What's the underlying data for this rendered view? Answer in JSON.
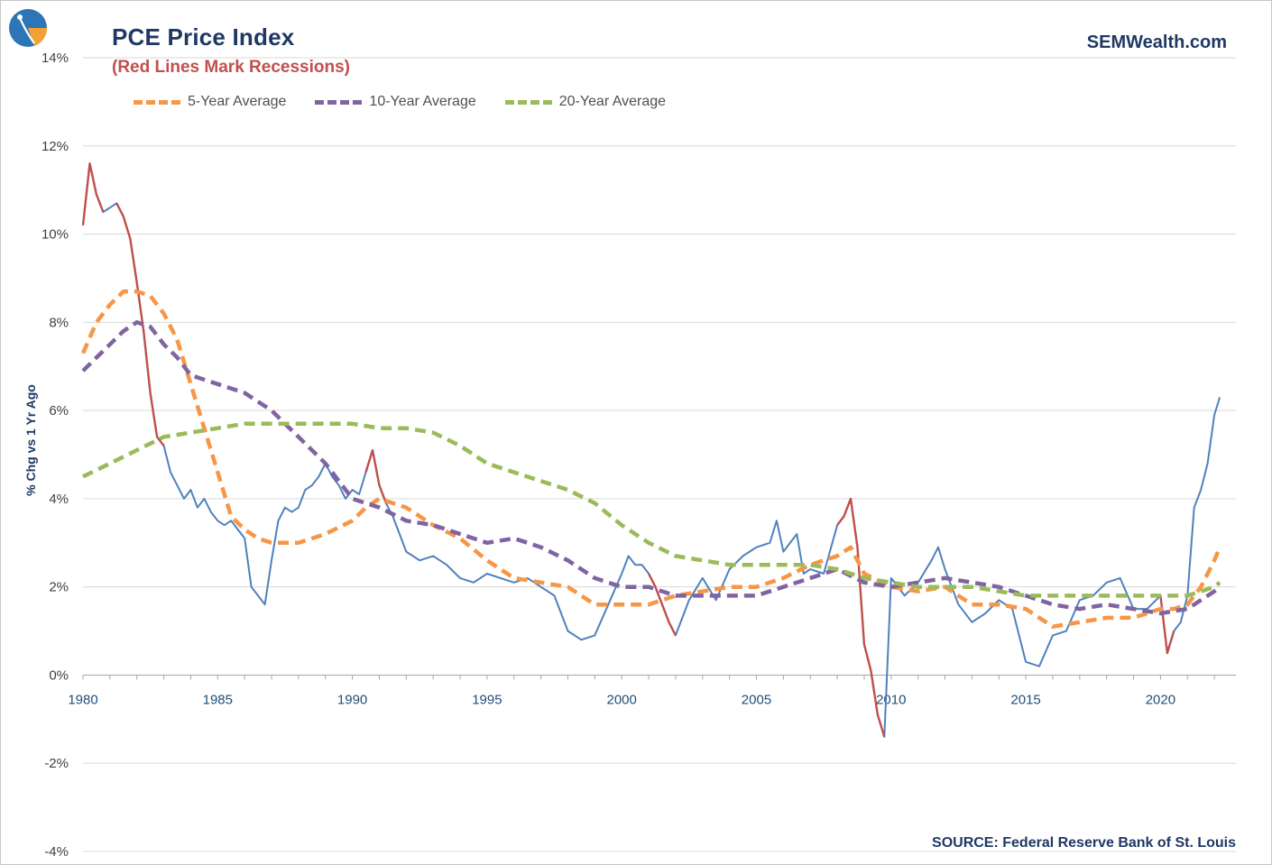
{
  "header": {
    "title": "PCE Price Index",
    "subtitle": "(Red Lines Mark Recessions)",
    "brand": "SEMWealth.com"
  },
  "footer": {
    "source": "SOURCE:  Federal Reserve Bank of St. Louis"
  },
  "legend": [
    {
      "label": "5-Year Average",
      "color": "#f79646"
    },
    {
      "label": "10-Year Average",
      "color": "#8064a2"
    },
    {
      "label": "20-Year Average",
      "color": "#9bbb59"
    }
  ],
  "chart_data": {
    "type": "line",
    "ylabel": "% Chg vs 1 Yr Ago",
    "xlabel": "",
    "xlim": [
      1980,
      2022.8
    ],
    "ylim": [
      -4,
      14
    ],
    "xticks": [
      "1980",
      "1985",
      "1990",
      "1995",
      "2000",
      "2005",
      "2010",
      "2015",
      "2020"
    ],
    "yticks": [
      "-4%",
      "-2%",
      "0%",
      "2%",
      "4%",
      "6%",
      "8%",
      "10%",
      "12%",
      "14%"
    ],
    "grid": true,
    "legend_position": "top-left",
    "recession_color": "#c0504d",
    "recessions": [
      [
        1980.0,
        1980.5
      ],
      [
        1981.5,
        1982.9
      ],
      [
        1990.55,
        1991.2
      ],
      [
        2001.2,
        2001.9
      ],
      [
        2007.95,
        2009.5
      ],
      [
        2020.1,
        2020.4
      ]
    ],
    "series": [
      {
        "name": "PCE Price Index",
        "color": "#4f81bd",
        "x": [
          1980.0,
          1980.25,
          1980.5,
          1980.75,
          1981.0,
          1981.25,
          1981.5,
          1981.75,
          1982.0,
          1982.25,
          1982.5,
          1982.75,
          1983.0,
          1983.25,
          1983.5,
          1983.75,
          1984.0,
          1984.25,
          1984.5,
          1984.75,
          1985.0,
          1985.25,
          1985.5,
          1985.75,
          1986.0,
          1986.25,
          1986.5,
          1986.75,
          1987.0,
          1987.25,
          1987.5,
          1987.75,
          1988.0,
          1988.25,
          1988.5,
          1988.75,
          1989.0,
          1989.25,
          1989.5,
          1989.75,
          1990.0,
          1990.25,
          1990.5,
          1990.75,
          1991.0,
          1991.25,
          1991.5,
          1991.75,
          1992.0,
          1992.5,
          1993.0,
          1993.5,
          1994.0,
          1994.5,
          1995.0,
          1995.5,
          1996.0,
          1996.5,
          1997.0,
          1997.5,
          1998.0,
          1998.5,
          1999.0,
          1999.5,
          2000.0,
          2000.25,
          2000.5,
          2000.75,
          2001.0,
          2001.25,
          2001.5,
          2001.75,
          2002.0,
          2002.5,
          2003.0,
          2003.5,
          2004.0,
          2004.5,
          2005.0,
          2005.5,
          2005.75,
          2006.0,
          2006.5,
          2006.75,
          2007.0,
          2007.5,
          2008.0,
          2008.25,
          2008.5,
          2008.75,
          2009.0,
          2009.25,
          2009.5,
          2009.75,
          2010.0,
          2010.5,
          2011.0,
          2011.5,
          2011.75,
          2012.0,
          2012.5,
          2013.0,
          2013.5,
          2014.0,
          2014.5,
          2015.0,
          2015.5,
          2016.0,
          2016.5,
          2017.0,
          2017.5,
          2018.0,
          2018.5,
          2019.0,
          2019.5,
          2020.0,
          2020.25,
          2020.5,
          2020.75,
          2021.0,
          2021.25,
          2021.5,
          2021.75,
          2022.0,
          2022.2
        ],
        "y": [
          10.2,
          11.6,
          10.9,
          10.5,
          10.6,
          10.7,
          10.4,
          9.9,
          8.9,
          7.8,
          6.4,
          5.4,
          5.2,
          4.6,
          4.3,
          4.0,
          4.2,
          3.8,
          4.0,
          3.7,
          3.5,
          3.4,
          3.5,
          3.3,
          3.1,
          2.0,
          1.8,
          1.6,
          2.6,
          3.5,
          3.8,
          3.7,
          3.8,
          4.2,
          4.3,
          4.5,
          4.8,
          4.5,
          4.3,
          4.0,
          4.2,
          4.1,
          4.6,
          5.1,
          4.3,
          3.9,
          3.6,
          3.2,
          2.8,
          2.6,
          2.7,
          2.5,
          2.2,
          2.1,
          2.3,
          2.2,
          2.1,
          2.2,
          2.0,
          1.8,
          1.0,
          0.8,
          0.9,
          1.6,
          2.3,
          2.7,
          2.5,
          2.5,
          2.3,
          2.0,
          1.6,
          1.2,
          0.9,
          1.7,
          2.2,
          1.7,
          2.4,
          2.7,
          2.9,
          3.0,
          3.5,
          2.8,
          3.2,
          2.3,
          2.4,
          2.3,
          3.4,
          3.6,
          4.0,
          2.9,
          0.7,
          0.1,
          -0.9,
          -1.4,
          2.2,
          1.8,
          2.1,
          2.6,
          2.9,
          2.4,
          1.6,
          1.2,
          1.4,
          1.7,
          1.5,
          0.3,
          0.2,
          0.9,
          1.0,
          1.7,
          1.8,
          2.1,
          2.2,
          1.5,
          1.5,
          1.8,
          0.5,
          1.0,
          1.2,
          1.8,
          3.8,
          4.2,
          4.8,
          5.9,
          6.3
        ]
      },
      {
        "name": "5-Year Average",
        "color": "#f79646",
        "dashed": true,
        "x": [
          1980.0,
          1980.5,
          1981.0,
          1981.5,
          1982.0,
          1982.5,
          1983.0,
          1983.5,
          1984.0,
          1984.5,
          1985.0,
          1985.5,
          1986.0,
          1986.5,
          1987.0,
          1988.0,
          1989.0,
          1990.0,
          1990.5,
          1991.0,
          1992.0,
          1993.0,
          1994.0,
          1995.0,
          1996.0,
          1997.0,
          1998.0,
          1999.0,
          2000.0,
          2001.0,
          2002.0,
          2003.0,
          2004.0,
          2005.0,
          2006.0,
          2007.0,
          2008.0,
          2008.5,
          2009.0,
          2010.0,
          2011.0,
          2012.0,
          2013.0,
          2014.0,
          2015.0,
          2016.0,
          2017.0,
          2018.0,
          2019.0,
          2020.0,
          2020.5,
          2021.0,
          2021.5,
          2022.0,
          2022.2
        ],
        "y": [
          7.3,
          8.0,
          8.4,
          8.7,
          8.7,
          8.6,
          8.2,
          7.6,
          6.6,
          5.6,
          4.6,
          3.6,
          3.3,
          3.1,
          3.0,
          3.0,
          3.2,
          3.5,
          3.8,
          4.0,
          3.8,
          3.4,
          3.1,
          2.6,
          2.2,
          2.1,
          2.0,
          1.6,
          1.6,
          1.6,
          1.8,
          1.9,
          2.0,
          2.0,
          2.2,
          2.5,
          2.7,
          2.9,
          2.3,
          2.0,
          1.9,
          2.0,
          1.6,
          1.6,
          1.5,
          1.1,
          1.2,
          1.3,
          1.3,
          1.5,
          1.5,
          1.6,
          2.0,
          2.6,
          2.9
        ]
      },
      {
        "name": "10-Year Average",
        "color": "#8064a2",
        "dashed": true,
        "x": [
          1980.0,
          1980.5,
          1981.0,
          1981.5,
          1982.0,
          1982.5,
          1983.0,
          1983.5,
          1984.0,
          1985.0,
          1986.0,
          1987.0,
          1988.0,
          1989.0,
          1990.0,
          1991.0,
          1992.0,
          1993.0,
          1994.0,
          1995.0,
          1996.0,
          1997.0,
          1998.0,
          1999.0,
          2000.0,
          2001.0,
          2002.0,
          2003.0,
          2004.0,
          2005.0,
          2006.0,
          2007.0,
          2008.0,
          2009.0,
          2010.0,
          2011.0,
          2012.0,
          2013.0,
          2014.0,
          2015.0,
          2016.0,
          2017.0,
          2018.0,
          2019.0,
          2020.0,
          2021.0,
          2021.5,
          2022.0,
          2022.2
        ],
        "y": [
          6.9,
          7.2,
          7.5,
          7.8,
          8.0,
          7.9,
          7.5,
          7.2,
          6.8,
          6.6,
          6.4,
          6.0,
          5.4,
          4.8,
          4.0,
          3.8,
          3.5,
          3.4,
          3.2,
          3.0,
          3.1,
          2.9,
          2.6,
          2.2,
          2.0,
          2.0,
          1.8,
          1.8,
          1.8,
          1.8,
          2.0,
          2.2,
          2.4,
          2.1,
          2.0,
          2.1,
          2.2,
          2.1,
          2.0,
          1.8,
          1.6,
          1.5,
          1.6,
          1.5,
          1.4,
          1.5,
          1.7,
          1.9,
          2.0
        ]
      },
      {
        "name": "20-Year Average",
        "color": "#9bbb59",
        "dashed": true,
        "x": [
          1980.0,
          1981.0,
          1982.0,
          1983.0,
          1984.0,
          1985.0,
          1986.0,
          1987.0,
          1988.0,
          1989.0,
          1990.0,
          1991.0,
          1992.0,
          1993.0,
          1994.0,
          1995.0,
          1996.0,
          1997.0,
          1998.0,
          1999.0,
          2000.0,
          2001.0,
          2002.0,
          2003.0,
          2004.0,
          2005.0,
          2006.0,
          2007.0,
          2008.0,
          2009.0,
          2010.0,
          2011.0,
          2012.0,
          2013.0,
          2014.0,
          2015.0,
          2016.0,
          2017.0,
          2018.0,
          2019.0,
          2020.0,
          2021.0,
          2022.0,
          2022.2
        ],
        "y": [
          4.5,
          4.8,
          5.1,
          5.4,
          5.5,
          5.6,
          5.7,
          5.7,
          5.7,
          5.7,
          5.7,
          5.6,
          5.6,
          5.5,
          5.2,
          4.8,
          4.6,
          4.4,
          4.2,
          3.9,
          3.4,
          3.0,
          2.7,
          2.6,
          2.5,
          2.5,
          2.5,
          2.5,
          2.4,
          2.2,
          2.1,
          2.0,
          2.0,
          2.0,
          1.9,
          1.8,
          1.8,
          1.8,
          1.8,
          1.8,
          1.8,
          1.8,
          2.0,
          2.1
        ]
      }
    ]
  }
}
